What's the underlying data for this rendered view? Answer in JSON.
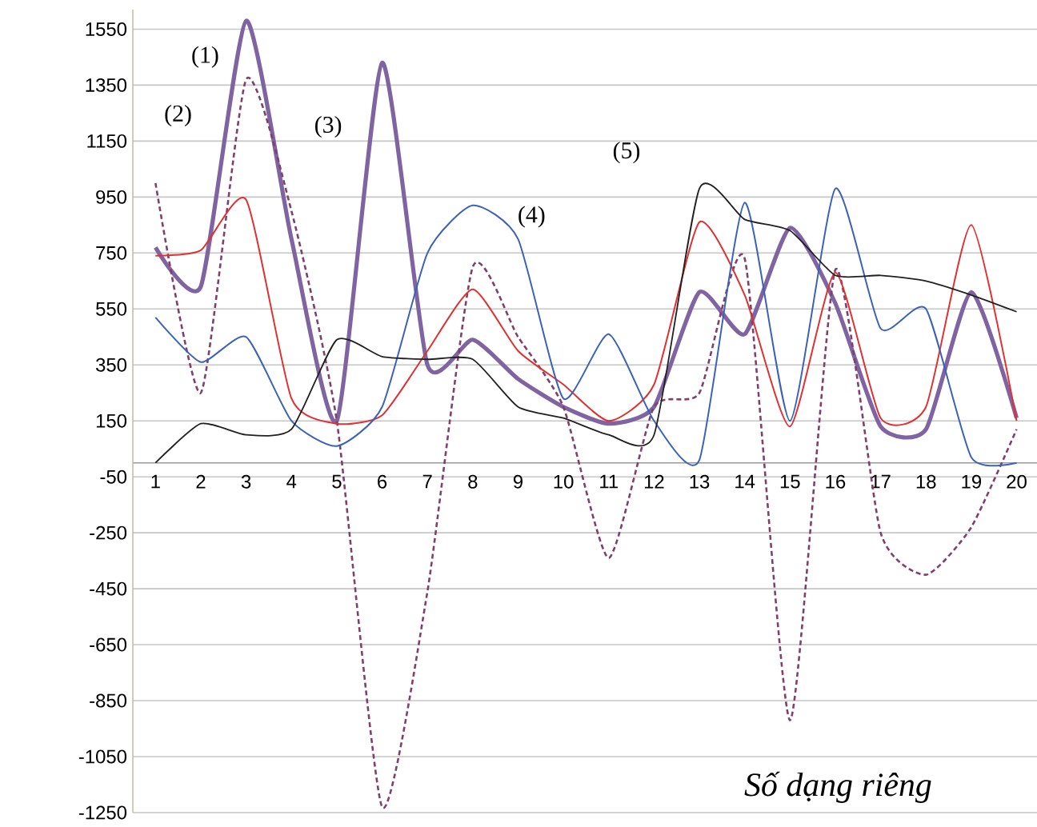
{
  "chart_data": {
    "type": "line",
    "xlabel": "Số dạng riêng",
    "x": [
      1,
      2,
      3,
      4,
      5,
      6,
      7,
      8,
      9,
      10,
      11,
      12,
      13,
      14,
      15,
      16,
      17,
      18,
      19,
      20
    ],
    "xlim": [
      0.5,
      20.45
    ],
    "xticks": [
      1,
      2,
      3,
      4,
      5,
      6,
      7,
      8,
      9,
      10,
      11,
      12,
      13,
      14,
      15,
      16,
      17,
      18,
      19,
      20
    ],
    "ylim": [
      -1250,
      1620
    ],
    "yticks": [
      -1250,
      -1050,
      -850,
      -650,
      -450,
      -250,
      -50,
      150,
      350,
      550,
      750,
      950,
      1150,
      1350,
      1550
    ],
    "grid": "y",
    "marker": "none",
    "series": [
      {
        "color": "#8064a2",
        "line_style": "solid",
        "values": [
          770,
          630,
          1580,
          800,
          150,
          1430,
          350,
          440,
          300,
          200,
          140,
          200,
          610,
          460,
          840,
          570,
          130,
          120,
          610,
          160
        ]
      },
      {
        "color": "#80406e",
        "line_style": "dashed",
        "values": [
          1000,
          250,
          1370,
          900,
          150,
          -1230,
          -460,
          700,
          450,
          200,
          -340,
          200,
          250,
          730,
          -920,
          690,
          -250,
          -400,
          -230,
          120
        ]
      },
      {
        "color": "#e0302f",
        "line_style": "solid",
        "values": [
          740,
          760,
          940,
          230,
          140,
          170,
          400,
          620,
          400,
          280,
          150,
          280,
          860,
          600,
          130,
          680,
          160,
          200,
          850,
          150
        ]
      },
      {
        "color": "#3a62b8",
        "line_style": "solid",
        "values": [
          520,
          360,
          450,
          150,
          60,
          200,
          750,
          920,
          800,
          230,
          460,
          150,
          10,
          930,
          150,
          980,
          480,
          550,
          20,
          0
        ]
      },
      {
        "color": "#202020",
        "line_style": "solid",
        "values": [
          0,
          140,
          100,
          120,
          440,
          380,
          370,
          370,
          200,
          160,
          100,
          100,
          980,
          870,
          830,
          670,
          670,
          650,
          600,
          540
        ]
      }
    ],
    "annotations": [
      "(1)",
      "(2)",
      "(3)",
      "(4)",
      "(5)"
    ]
  }
}
